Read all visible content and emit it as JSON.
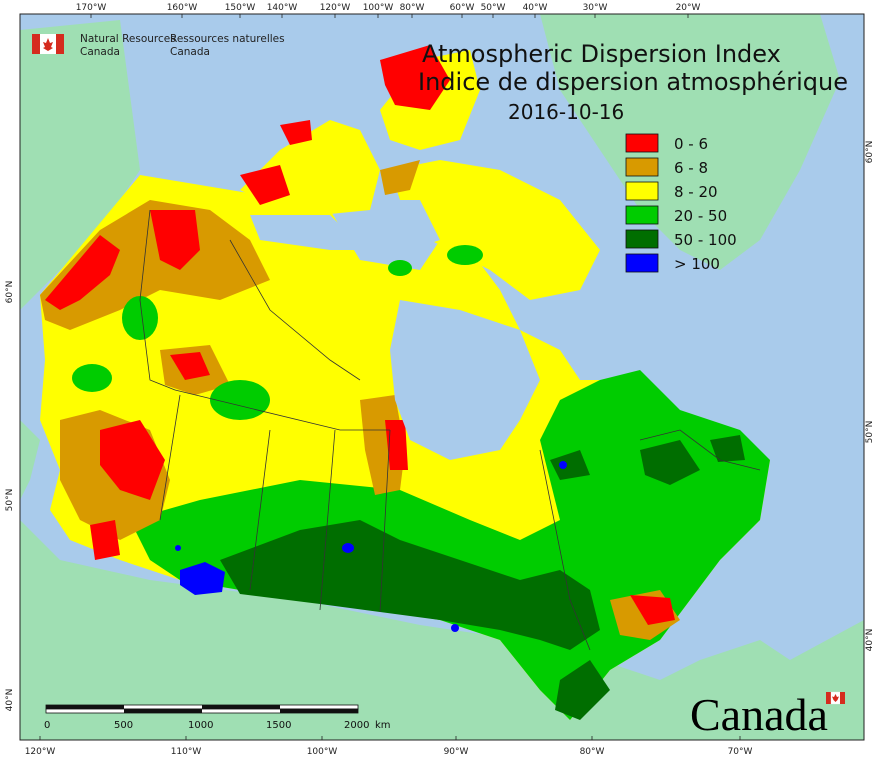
{
  "title": {
    "line1": "Atmospheric Dispersion Index",
    "line2": "Indice de dispersion atmosphérique",
    "date": "2016-10-16"
  },
  "agency": {
    "en_line1": "Natural Resources",
    "en_line2": "Canada",
    "fr_line1": "Ressources naturelles",
    "fr_line2": "Canada",
    "wordmark": "Canada"
  },
  "legend": [
    {
      "label": "0 - 6",
      "color": "#ff0000"
    },
    {
      "label": "6 - 8",
      "color": "#d89a00"
    },
    {
      "label": "8 - 20",
      "color": "#ffff00"
    },
    {
      "label": "20 - 50",
      "color": "#00cc00"
    },
    {
      "label": "50 - 100",
      "color": "#006e00"
    },
    {
      "label": "> 100",
      "color": "#0000ff"
    }
  ],
  "top_ticks": [
    "170°W",
    "160°W",
    "150°W",
    "140°W",
    "120°W",
    "100°W",
    "80°W",
    "60°W",
    "50°W",
    "40°W",
    "30°W",
    "20°W"
  ],
  "bottom_ticks": [
    "120°W",
    "110°W",
    "100°W",
    "90°W",
    "80°W",
    "70°W"
  ],
  "left_ticks": [
    "60°N",
    "50°N",
    "40°N"
  ],
  "right_ticks": [
    "60°N",
    "50°N",
    "40°N"
  ],
  "scale_bar": {
    "labels": [
      "0",
      "500",
      "1000",
      "1500",
      "2000"
    ],
    "unit": "km"
  },
  "colors": {
    "ocean": "#a9cbeb",
    "land_other": "#9fdfb3",
    "border": "#333333"
  }
}
